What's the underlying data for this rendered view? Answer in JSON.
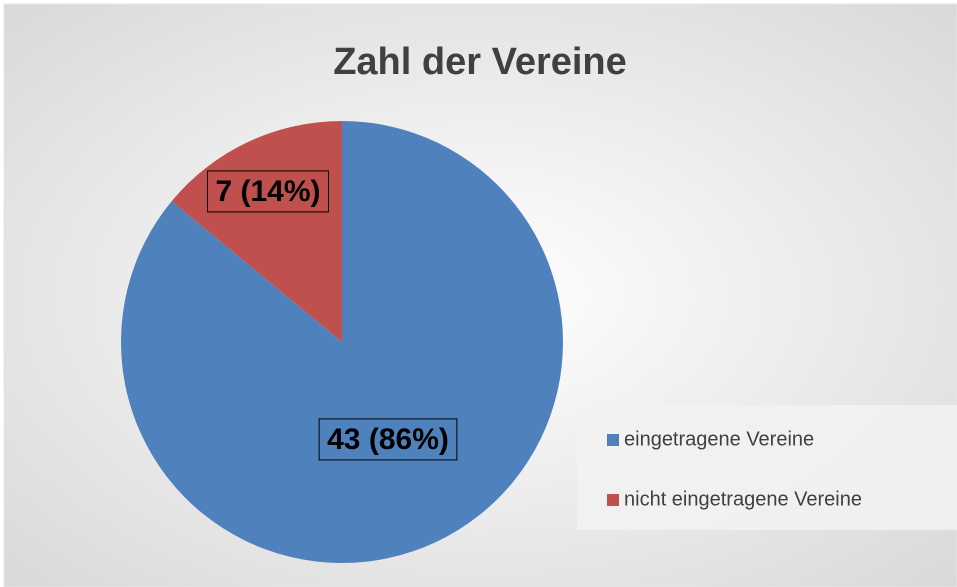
{
  "chart_data": {
    "type": "pie",
    "title": "Zahl der Vereine",
    "categories": [
      "eingetragene Vereine",
      "nicht eingetragene Vereine"
    ],
    "values": [
      43,
      7
    ],
    "value_labels": [
      "43 (86%)",
      "7 (14%)"
    ],
    "colors": [
      "#4f81bd",
      "#c0504d"
    ],
    "legend": "right"
  }
}
